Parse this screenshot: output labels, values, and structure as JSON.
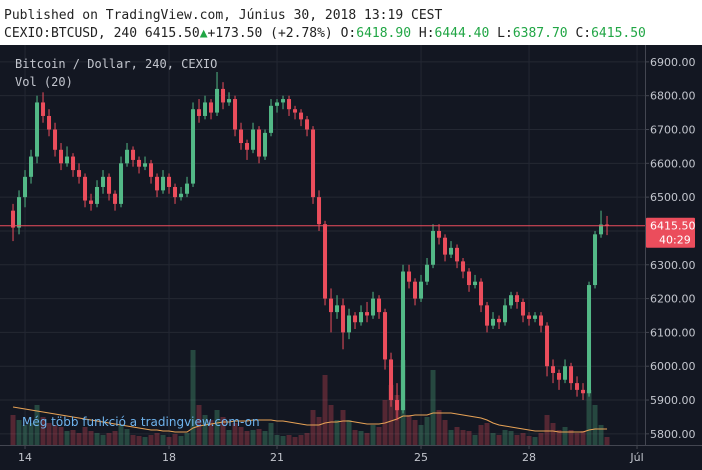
{
  "header": {
    "published": "Published on TradingView.com, Június 30, 2018 13:19 CEST",
    "symbol": "CEXIO:BTCUSD, 240",
    "last": "6415.50",
    "arrow": "▲",
    "change": "+173.50",
    "change_pct": "(+2.78%)",
    "o_label": "O:",
    "o": "6418.90",
    "h_label": "H:",
    "h": "6444.40",
    "l_label": "L:",
    "l": "6387.70",
    "c_label": "C:",
    "c": "6415.50"
  },
  "chart_data": {
    "type": "candlestick",
    "legend": [
      "Bitcoin / Dollar, 240, CEXIO",
      "Vol (20)"
    ],
    "watermark": "Még több funkció a tradingview.com-on",
    "up_color": "#53b987",
    "down_color": "#eb4d5c",
    "volume_ma_color": "#e8a356",
    "grid": true,
    "ylim": [
      5767,
      6941
    ],
    "yticks": [
      {
        "value": 5800,
        "label": "5800.00"
      },
      {
        "value": 5900,
        "label": "5900.00"
      },
      {
        "value": 6000,
        "label": "6000.00"
      },
      {
        "value": 6100,
        "label": "6100.00"
      },
      {
        "value": 6200,
        "label": "6200.00"
      },
      {
        "value": 6300,
        "label": "6300.00"
      },
      {
        "value": 6400,
        "label": "6400.00"
      },
      {
        "value": 6500,
        "label": "6500.00"
      },
      {
        "value": 6600,
        "label": "6600.00"
      },
      {
        "value": 6700,
        "label": "6700.00"
      },
      {
        "value": 6800,
        "label": "6800.00"
      },
      {
        "value": 6900,
        "label": "6900.00"
      }
    ],
    "xlim": [
      -2.17,
      105.33
    ],
    "xticks": [
      {
        "value": 2,
        "label": "14"
      },
      {
        "value": 26,
        "label": "18"
      },
      {
        "value": 44,
        "label": "21"
      },
      {
        "value": 68,
        "label": "25"
      },
      {
        "value": 86,
        "label": "28"
      },
      {
        "value": 104,
        "label": "Júl"
      }
    ],
    "volume_ylim": [
      0,
      100
    ],
    "last_price": {
      "value": 6415.5,
      "label": "6415.50"
    },
    "countdown": "40:29",
    "candles": [
      [
        6460,
        6480,
        6370,
        6410,
        30
      ],
      [
        6410,
        6520,
        6390,
        6500,
        25
      ],
      [
        6500,
        6580,
        6470,
        6560,
        20
      ],
      [
        6560,
        6640,
        6540,
        6620,
        22
      ],
      [
        6620,
        6800,
        6600,
        6780,
        40
      ],
      [
        6780,
        6810,
        6720,
        6740,
        28
      ],
      [
        6740,
        6760,
        6680,
        6700,
        22
      ],
      [
        6700,
        6720,
        6620,
        6640,
        20
      ],
      [
        6640,
        6660,
        6580,
        6600,
        18
      ],
      [
        6600,
        6650,
        6590,
        6620,
        14
      ],
      [
        6620,
        6630,
        6560,
        6580,
        15
      ],
      [
        6580,
        6600,
        6540,
        6560,
        12
      ],
      [
        6560,
        6570,
        6470,
        6490,
        18
      ],
      [
        6490,
        6510,
        6460,
        6480,
        14
      ],
      [
        6480,
        6550,
        6470,
        6530,
        12
      ],
      [
        6530,
        6580,
        6510,
        6560,
        10
      ],
      [
        6560,
        6570,
        6490,
        6510,
        12
      ],
      [
        6510,
        6520,
        6460,
        6480,
        14
      ],
      [
        6480,
        6620,
        6470,
        6600,
        20
      ],
      [
        6600,
        6660,
        6590,
        6640,
        16
      ],
      [
        6640,
        6650,
        6590,
        6610,
        10
      ],
      [
        6610,
        6620,
        6570,
        6590,
        9
      ],
      [
        6590,
        6620,
        6580,
        6600,
        8
      ],
      [
        6600,
        6610,
        6540,
        6560,
        10
      ],
      [
        6560,
        6570,
        6500,
        6520,
        12
      ],
      [
        6520,
        6580,
        6510,
        6560,
        10
      ],
      [
        6560,
        6570,
        6510,
        6530,
        8
      ],
      [
        6530,
        6540,
        6480,
        6500,
        11
      ],
      [
        6500,
        6530,
        6490,
        6510,
        9
      ],
      [
        6510,
        6560,
        6500,
        6540,
        12
      ],
      [
        6540,
        6780,
        6530,
        6760,
        95
      ],
      [
        6760,
        6790,
        6720,
        6740,
        40
      ],
      [
        6740,
        6800,
        6730,
        6780,
        30
      ],
      [
        6780,
        6790,
        6730,
        6750,
        25
      ],
      [
        6750,
        6870,
        6740,
        6820,
        35
      ],
      [
        6820,
        6840,
        6760,
        6780,
        28
      ],
      [
        6780,
        6810,
        6770,
        6790,
        15
      ],
      [
        6790,
        6800,
        6680,
        6700,
        22
      ],
      [
        6700,
        6720,
        6640,
        6660,
        18
      ],
      [
        6660,
        6670,
        6610,
        6640,
        14
      ],
      [
        6640,
        6720,
        6630,
        6700,
        15
      ],
      [
        6700,
        6710,
        6600,
        6620,
        16
      ],
      [
        6620,
        6700,
        6610,
        6690,
        14
      ],
      [
        6690,
        6790,
        6680,
        6770,
        22
      ],
      [
        6770,
        6790,
        6750,
        6780,
        10
      ],
      [
        6780,
        6800,
        6760,
        6790,
        9
      ],
      [
        6790,
        6800,
        6740,
        6760,
        10
      ],
      [
        6760,
        6770,
        6730,
        6750,
        8
      ],
      [
        6750,
        6760,
        6710,
        6730,
        10
      ],
      [
        6730,
        6740,
        6680,
        6700,
        12
      ],
      [
        6700,
        6710,
        6480,
        6500,
        35
      ],
      [
        6500,
        6520,
        6400,
        6420,
        28
      ],
      [
        6420,
        6430,
        6180,
        6200,
        70
      ],
      [
        6200,
        6230,
        6100,
        6160,
        40
      ],
      [
        6160,
        6210,
        6140,
        6180,
        25
      ],
      [
        6180,
        6200,
        6050,
        6100,
        35
      ],
      [
        6100,
        6170,
        6080,
        6150,
        25
      ],
      [
        6150,
        6160,
        6110,
        6130,
        15
      ],
      [
        6130,
        6180,
        6120,
        6160,
        14
      ],
      [
        6160,
        6190,
        6130,
        6150,
        12
      ],
      [
        6150,
        6220,
        6140,
        6200,
        20
      ],
      [
        6200,
        6210,
        6140,
        6160,
        18
      ],
      [
        6160,
        6170,
        5990,
        6020,
        45
      ],
      [
        6020,
        6040,
        5880,
        5900,
        60
      ],
      [
        5900,
        5950,
        5840,
        5870,
        50
      ],
      [
        5870,
        6300,
        5860,
        6280,
        85
      ],
      [
        6280,
        6300,
        6230,
        6250,
        30
      ],
      [
        6250,
        6260,
        6180,
        6200,
        25
      ],
      [
        6200,
        6270,
        6190,
        6250,
        20
      ],
      [
        6250,
        6320,
        6240,
        6300,
        28
      ],
      [
        6300,
        6420,
        6290,
        6400,
        75
      ],
      [
        6400,
        6420,
        6360,
        6380,
        35
      ],
      [
        6380,
        6390,
        6310,
        6330,
        25
      ],
      [
        6330,
        6370,
        6320,
        6350,
        15
      ],
      [
        6350,
        6360,
        6290,
        6310,
        18
      ],
      [
        6310,
        6320,
        6260,
        6280,
        15
      ],
      [
        6280,
        6290,
        6220,
        6240,
        14
      ],
      [
        6240,
        6270,
        6230,
        6250,
        10
      ],
      [
        6250,
        6260,
        6160,
        6180,
        20
      ],
      [
        6180,
        6190,
        6100,
        6120,
        22
      ],
      [
        6120,
        6160,
        6110,
        6140,
        12
      ],
      [
        6140,
        6150,
        6110,
        6130,
        10
      ],
      [
        6130,
        6200,
        6120,
        6180,
        15
      ],
      [
        6180,
        6220,
        6170,
        6210,
        14
      ],
      [
        6210,
        6220,
        6170,
        6190,
        10
      ],
      [
        6190,
        6200,
        6130,
        6150,
        12
      ],
      [
        6150,
        6160,
        6120,
        6140,
        9
      ],
      [
        6140,
        6160,
        6130,
        6150,
        8
      ],
      [
        6150,
        6160,
        6100,
        6120,
        12
      ],
      [
        6120,
        6130,
        5970,
        6000,
        30
      ],
      [
        6000,
        6020,
        5950,
        5980,
        22
      ],
      [
        5980,
        5990,
        5930,
        5960,
        15
      ],
      [
        5960,
        6020,
        5950,
        6000,
        18
      ],
      [
        6000,
        6010,
        5930,
        5950,
        15
      ],
      [
        5950,
        5970,
        5910,
        5930,
        12
      ],
      [
        5930,
        5950,
        5900,
        5920,
        14
      ],
      [
        5920,
        6250,
        5910,
        6240,
        55
      ],
      [
        6240,
        6400,
        6230,
        6390,
        40
      ],
      [
        6390,
        6460,
        6380,
        6418.9,
        20
      ],
      [
        6418.9,
        6444.4,
        6387.7,
        6415.5,
        8
      ]
    ],
    "volume_ma": [
      38,
      37,
      36,
      35,
      34,
      33,
      32,
      31,
      30,
      29,
      28,
      27,
      26,
      25,
      24,
      23,
      22,
      21,
      20,
      19,
      18,
      17,
      16,
      15,
      15,
      14,
      14,
      13,
      13,
      13,
      17,
      19,
      20,
      21,
      22,
      23,
      23,
      24,
      24,
      24,
      25,
      25,
      25,
      25,
      24,
      24,
      23,
      22,
      21,
      20,
      20,
      20,
      22,
      23,
      23,
      24,
      24,
      23,
      22,
      21,
      21,
      21,
      22,
      24,
      26,
      29,
      29,
      30,
      30,
      30,
      32,
      32,
      32,
      32,
      31,
      30,
      29,
      28,
      27,
      25,
      22,
      20,
      19,
      18,
      17,
      16,
      15,
      14,
      14,
      14,
      14,
      13,
      13,
      13,
      13,
      13,
      15,
      16,
      16,
      16
    ]
  }
}
